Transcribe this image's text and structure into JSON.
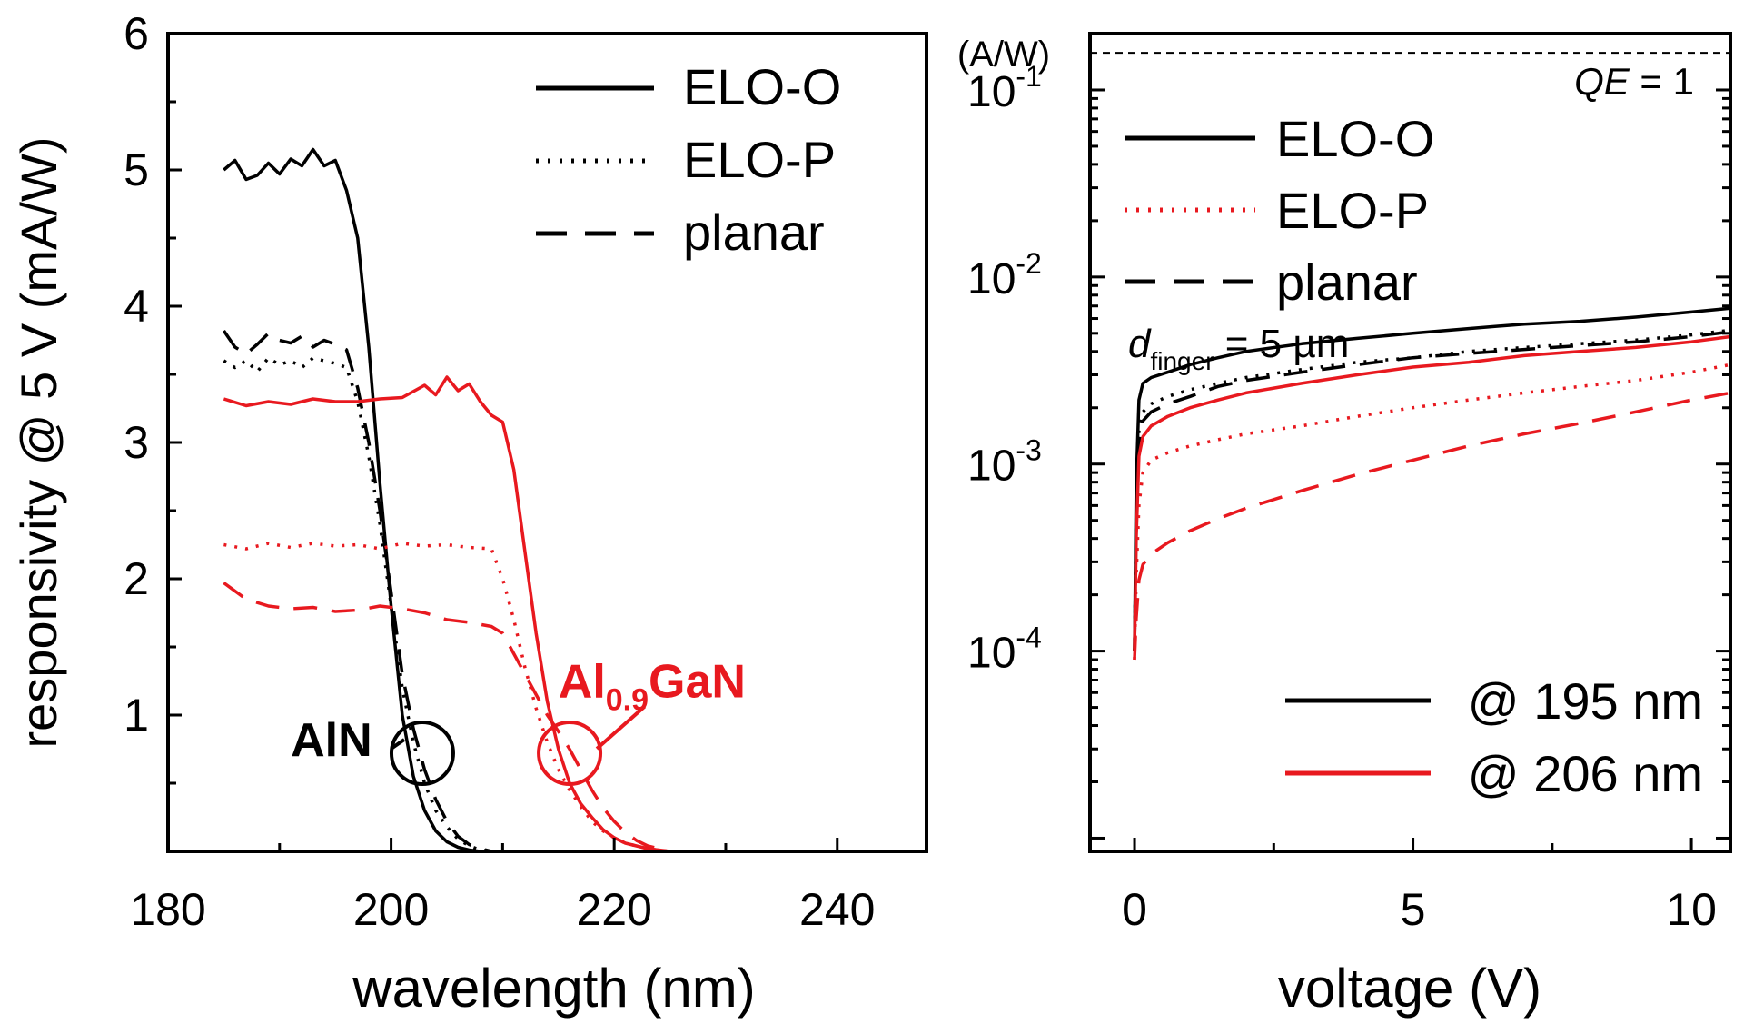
{
  "colors": {
    "black": "#000000",
    "red": "#e8191f"
  },
  "chart_data": [
    {
      "type": "line",
      "xlabel": "wavelength (nm)",
      "ylabel": "responsivity @ 5 V (mA/W)",
      "xlim": [
        180,
        248
      ],
      "ylim": [
        0,
        6
      ],
      "xticks": [
        180,
        200,
        220,
        240
      ],
      "yticks": [
        1,
        2,
        3,
        4,
        5,
        6
      ],
      "legend_position": "top-right",
      "legend": [
        {
          "label": "ELO-O",
          "style": "solid"
        },
        {
          "label": "ELO-P",
          "style": "dotted"
        },
        {
          "label": "planar",
          "style": "dashed"
        }
      ],
      "annotations": {
        "aln": {
          "label": "AlN",
          "circle_x": 202.8,
          "circle_y": 0.72,
          "label_x": 191,
          "label_y": 0.82
        },
        "algan": {
          "label_prefix": "Al",
          "label_sub": "0.9",
          "label_suffix": "GaN",
          "circle_x": 216,
          "circle_y": 0.72,
          "label_x": 215,
          "label_y": 1.25
        }
      },
      "series": [
        {
          "material": "AlN",
          "style": "solid",
          "color": "black",
          "x": [
            185,
            186,
            187,
            188,
            189,
            190,
            191,
            192,
            193,
            194,
            195,
            196,
            197,
            198,
            199,
            200,
            201,
            202,
            203,
            204,
            205,
            206,
            207,
            208,
            209,
            210
          ],
          "y": [
            5.0,
            5.07,
            4.93,
            4.96,
            5.05,
            4.97,
            5.08,
            5.03,
            5.15,
            5.03,
            5.07,
            4.85,
            4.5,
            3.7,
            2.7,
            1.8,
            1.0,
            0.55,
            0.3,
            0.15,
            0.07,
            0.03,
            0.01,
            0,
            0,
            0
          ]
        },
        {
          "material": "AlN",
          "style": "dotted",
          "color": "black",
          "x": [
            185,
            186,
            187,
            188,
            189,
            190,
            191,
            192,
            193,
            194,
            195,
            196,
            197,
            198,
            199,
            200,
            201,
            202,
            203,
            204,
            205,
            206,
            207,
            208,
            209,
            210
          ],
          "y": [
            3.6,
            3.55,
            3.6,
            3.52,
            3.62,
            3.57,
            3.6,
            3.55,
            3.62,
            3.6,
            3.58,
            3.55,
            3.3,
            2.9,
            2.4,
            1.8,
            1.2,
            0.8,
            0.5,
            0.3,
            0.18,
            0.09,
            0.04,
            0.01,
            0,
            0
          ]
        },
        {
          "material": "AlN",
          "style": "dashed",
          "color": "black",
          "x": [
            185,
            186,
            187,
            188,
            189,
            190,
            191,
            192,
            193,
            194,
            195,
            196,
            197,
            198,
            199,
            200,
            201,
            202,
            203,
            204,
            205,
            206,
            207,
            208,
            209,
            210
          ],
          "y": [
            3.82,
            3.7,
            3.65,
            3.72,
            3.8,
            3.75,
            3.73,
            3.78,
            3.7,
            3.75,
            3.72,
            3.68,
            3.4,
            3.0,
            2.5,
            1.9,
            1.3,
            0.9,
            0.6,
            0.38,
            0.22,
            0.11,
            0.05,
            0.02,
            0,
            0
          ]
        },
        {
          "material": "Al0.9GaN",
          "style": "solid",
          "color": "red",
          "x": [
            185,
            187,
            189,
            191,
            193,
            195,
            197,
            199,
            201,
            203,
            204,
            205,
            206,
            207,
            208,
            209,
            210,
            211,
            212,
            213,
            214,
            215,
            216,
            217,
            218,
            219,
            220,
            221,
            222,
            223,
            224,
            225,
            226,
            228,
            230,
            235,
            240,
            248
          ],
          "y": [
            3.32,
            3.27,
            3.3,
            3.28,
            3.32,
            3.3,
            3.3,
            3.32,
            3.33,
            3.42,
            3.35,
            3.48,
            3.38,
            3.43,
            3.3,
            3.2,
            3.15,
            2.8,
            2.2,
            1.6,
            1.1,
            0.75,
            0.5,
            0.35,
            0.25,
            0.16,
            0.1,
            0.06,
            0.04,
            0.02,
            0.01,
            0,
            0,
            0,
            0,
            0,
            0,
            0
          ]
        },
        {
          "material": "Al0.9GaN",
          "style": "dotted",
          "color": "red",
          "x": [
            185,
            187,
            189,
            191,
            193,
            195,
            197,
            199,
            201,
            203,
            205,
            207,
            209,
            210,
            211,
            212,
            213,
            214,
            215,
            216,
            217,
            218,
            219,
            220,
            221,
            222,
            223,
            224,
            225,
            226,
            228,
            230,
            248
          ],
          "y": [
            2.25,
            2.22,
            2.26,
            2.23,
            2.26,
            2.24,
            2.25,
            2.22,
            2.26,
            2.24,
            2.25,
            2.23,
            2.22,
            2.0,
            1.7,
            1.35,
            1.05,
            0.8,
            0.6,
            0.45,
            0.33,
            0.22,
            0.15,
            0.1,
            0.06,
            0.04,
            0.02,
            0.01,
            0,
            0,
            0,
            0,
            0
          ]
        },
        {
          "material": "Al0.9GaN",
          "style": "dashed",
          "color": "red",
          "x": [
            185,
            187,
            189,
            191,
            193,
            195,
            197,
            199,
            201,
            203,
            205,
            207,
            209,
            210,
            211,
            212,
            213,
            214,
            215,
            216,
            217,
            218,
            219,
            220,
            221,
            222,
            223,
            224,
            225,
            226,
            228,
            230,
            248
          ],
          "y": [
            1.97,
            1.85,
            1.8,
            1.78,
            1.79,
            1.76,
            1.77,
            1.8,
            1.78,
            1.75,
            1.7,
            1.68,
            1.65,
            1.6,
            1.45,
            1.3,
            1.15,
            1.0,
            0.88,
            0.75,
            0.6,
            0.45,
            0.32,
            0.22,
            0.14,
            0.08,
            0.04,
            0.02,
            0,
            0,
            0,
            0,
            0
          ]
        }
      ]
    },
    {
      "type": "line",
      "xlabel": "voltage (V)",
      "ylabel": "(A/W)",
      "yscale": "log",
      "xlim": [
        -0.8,
        10.7
      ],
      "ylim": [
        8.5e-06,
        0.2
      ],
      "xticks": [
        0,
        5,
        10
      ],
      "ytick_labels": [
        {
          "value": 0.1,
          "base": "10",
          "exp": "-1"
        },
        {
          "value": 0.01,
          "base": "10",
          "exp": "-2"
        },
        {
          "value": 0.001,
          "base": "10",
          "exp": "-3"
        },
        {
          "value": 0.0001,
          "base": "10",
          "exp": "-4"
        }
      ],
      "reference_line": {
        "y": 0.158,
        "label_italic": "QE",
        "label_rest": " = 1"
      },
      "legend_top": [
        {
          "label": "ELO-O",
          "style": "solid",
          "color": "black"
        },
        {
          "label": "ELO-P",
          "style": "dotted",
          "color": "red"
        },
        {
          "label": "planar",
          "style": "dashed",
          "color": "black"
        }
      ],
      "legend_bottom": [
        {
          "label": "@ 195 nm",
          "style": "solid",
          "color": "black"
        },
        {
          "label": "@ 206 nm",
          "style": "solid",
          "color": "red"
        }
      ],
      "annotation": {
        "italic": "d",
        "sub": "finger",
        "rest": " = 5 µm"
      },
      "series": [
        {
          "wavelength": "195 nm",
          "style": "solid",
          "color": "black",
          "x": [
            0,
            0.03,
            0.08,
            0.15,
            0.3,
            0.6,
            1,
            1.5,
            2,
            3,
            4,
            5,
            6,
            7,
            8,
            9,
            10,
            10.7
          ],
          "y": [
            0.0001,
            0.0008,
            0.0022,
            0.0027,
            0.0029,
            0.0031,
            0.0034,
            0.0037,
            0.004,
            0.0044,
            0.0047,
            0.005,
            0.0053,
            0.0056,
            0.0058,
            0.0061,
            0.0065,
            0.0068
          ]
        },
        {
          "wavelength": "195 nm",
          "style": "dotted",
          "color": "black",
          "x": [
            0,
            0.03,
            0.08,
            0.15,
            0.3,
            0.6,
            1,
            1.5,
            2,
            3,
            4,
            5,
            6,
            7,
            8,
            9,
            10,
            10.7
          ],
          "y": [
            0.0001,
            0.0006,
            0.0015,
            0.0019,
            0.0021,
            0.0023,
            0.0025,
            0.0027,
            0.0029,
            0.0032,
            0.0035,
            0.0037,
            0.004,
            0.0042,
            0.0044,
            0.0046,
            0.0049,
            0.0052
          ]
        },
        {
          "wavelength": "195 nm",
          "style": "dashed",
          "color": "black",
          "x": [
            0,
            0.03,
            0.08,
            0.15,
            0.3,
            0.6,
            1,
            1.5,
            2,
            3,
            4,
            5,
            6,
            7,
            8,
            9,
            10,
            10.7
          ],
          "y": [
            0.0001,
            0.0005,
            0.0013,
            0.0017,
            0.0019,
            0.0021,
            0.0023,
            0.0026,
            0.0028,
            0.0031,
            0.0034,
            0.0037,
            0.0039,
            0.0041,
            0.0043,
            0.0045,
            0.0048,
            0.0051
          ]
        },
        {
          "wavelength": "206 nm",
          "style": "solid",
          "color": "red",
          "x": [
            0,
            0.03,
            0.08,
            0.15,
            0.3,
            0.6,
            1,
            1.5,
            2,
            3,
            4,
            5,
            6,
            7,
            8,
            9,
            10,
            10.7
          ],
          "y": [
            0.0001,
            0.0004,
            0.0011,
            0.0014,
            0.0016,
            0.0018,
            0.002,
            0.0022,
            0.0024,
            0.0027,
            0.003,
            0.0033,
            0.0035,
            0.0038,
            0.004,
            0.0042,
            0.0045,
            0.0048
          ]
        },
        {
          "wavelength": "206 nm",
          "style": "dotted",
          "color": "red",
          "x": [
            0,
            0.03,
            0.08,
            0.15,
            0.3,
            0.6,
            1,
            1.5,
            2,
            3,
            4,
            5,
            6,
            7,
            8,
            9,
            10,
            10.7
          ],
          "y": [
            9e-05,
            0.00025,
            0.0006,
            0.0009,
            0.00105,
            0.00115,
            0.00125,
            0.00135,
            0.00145,
            0.0016,
            0.0018,
            0.002,
            0.0022,
            0.0024,
            0.0026,
            0.0028,
            0.0031,
            0.0034
          ]
        },
        {
          "wavelength": "206 nm",
          "style": "dashed",
          "color": "red",
          "x": [
            0,
            0.03,
            0.08,
            0.15,
            0.3,
            0.6,
            1,
            1.5,
            2,
            3,
            4,
            5,
            6,
            7,
            8,
            9,
            10,
            10.7
          ],
          "y": [
            9e-05,
            0.00015,
            0.00024,
            0.00029,
            0.00033,
            0.00038,
            0.00044,
            0.00051,
            0.00058,
            0.00072,
            0.00088,
            0.00105,
            0.00125,
            0.00145,
            0.00165,
            0.0019,
            0.0022,
            0.0024
          ]
        }
      ]
    }
  ]
}
